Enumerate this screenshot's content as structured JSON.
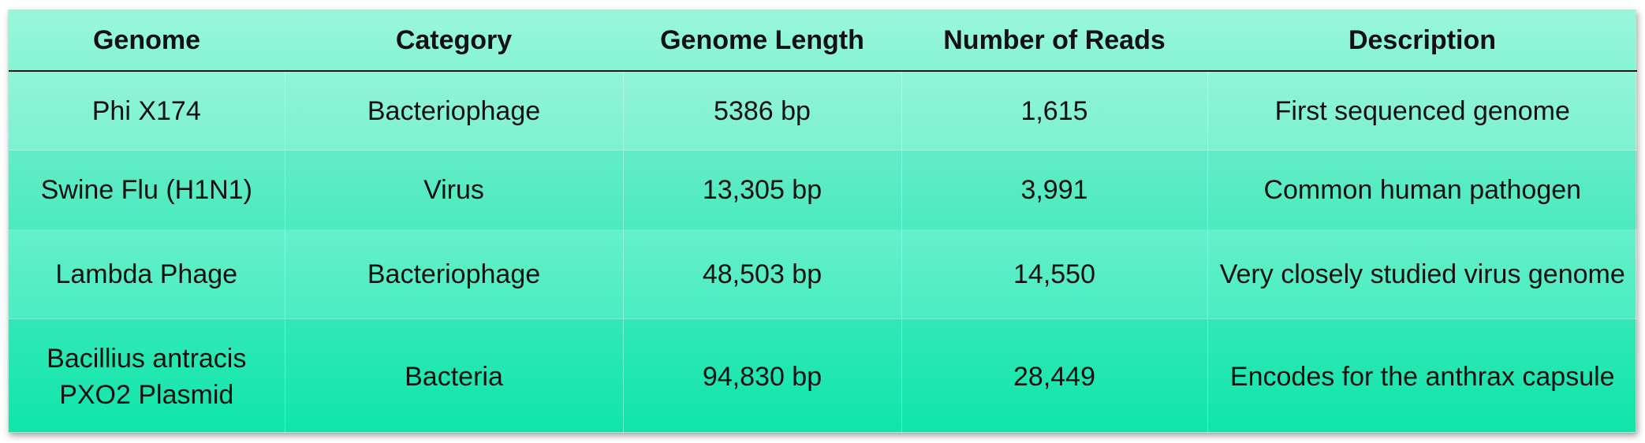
{
  "table": {
    "headers": [
      "Genome",
      "Category",
      "Genome Length",
      "Number of Reads",
      "Description"
    ],
    "rows": [
      [
        "Phi X174",
        "Bacteriophage",
        "5386 bp",
        "1,615",
        "First sequenced genome"
      ],
      [
        "Swine Flu (H1N1)",
        "Virus",
        "13,305 bp",
        "3,991",
        "Common human pathogen"
      ],
      [
        "Lambda Phage",
        "Bacteriophage",
        "48,503 bp",
        "14,550",
        "Very closely studied virus genome"
      ],
      [
        "Bacillius antracis PXO2 Plasmid",
        "Bacteria",
        "94,830 bp",
        "28,449",
        "Encodes for the anthrax capsule"
      ]
    ],
    "colors": {
      "top": "#9af7dc",
      "bottom": "#12e8ab",
      "text": "#111111"
    }
  }
}
